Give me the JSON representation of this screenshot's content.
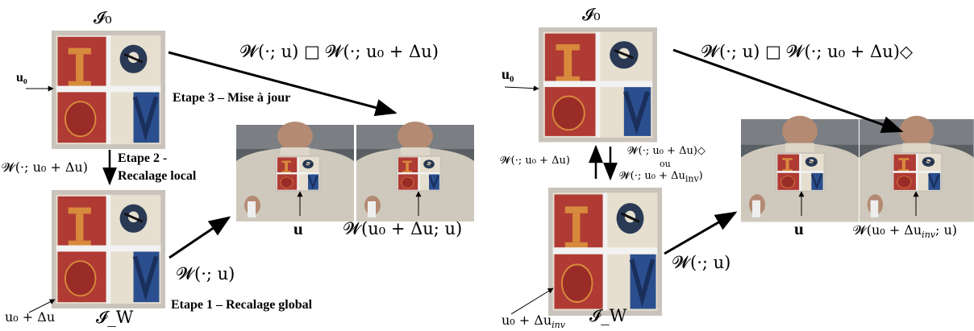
{
  "left": {
    "top_label": "𝓘₀",
    "bottom_label": "𝓘_W",
    "u0_label": "u₀",
    "u0_delta_label": "u₀ + Δu",
    "step2_warp": "𝓦(·; u₀ + Δu)",
    "step2_title": "Etape 2 -",
    "step2_subtitle": "Recalage local",
    "step3_title": "Etape 3 – Mise à jour",
    "step1_title": "Etape 1 – Recalage global",
    "compose_label": "𝓦(·; u) □ 𝓦(·; u₀ + Δu)",
    "global_warp": "𝓦(·; u)",
    "photo_u": "u",
    "photo_result": "𝓦(u₀ + Δu; u)"
  },
  "right": {
    "top_label": "𝓘₀",
    "bottom_label": "𝓘_W",
    "u0_label": "u₀",
    "u0_delta_label": "u₀ + Δu",
    "u0_delta_sub": "inv",
    "up_warp": "𝓦(·; u₀ + Δu)",
    "down_warp_1": "𝓦(·; u₀ + Δu)◇",
    "down_ou": "ou",
    "down_warp_2": "𝓦(·; u₀ + Δu",
    "down_warp_2_sub": "inv",
    "down_warp_2_close": ")",
    "compose_label": "𝓦(·; u) □ 𝓦(·; u₀ + Δu)◇",
    "global_warp": "𝓦(·; u)",
    "photo_u": "u",
    "photo_result": "𝓦(u₀ + Δu",
    "photo_result_sub": "inv",
    "photo_result_close": "; u)"
  },
  "colors": {
    "flag_red": "#b03a34",
    "flag_blue": "#2b4f8e",
    "flag_cream": "#e6dfcf",
    "frame": "#c9c3bb",
    "sweater": "#cfc9bd",
    "background_photo": "#5a5f63"
  }
}
